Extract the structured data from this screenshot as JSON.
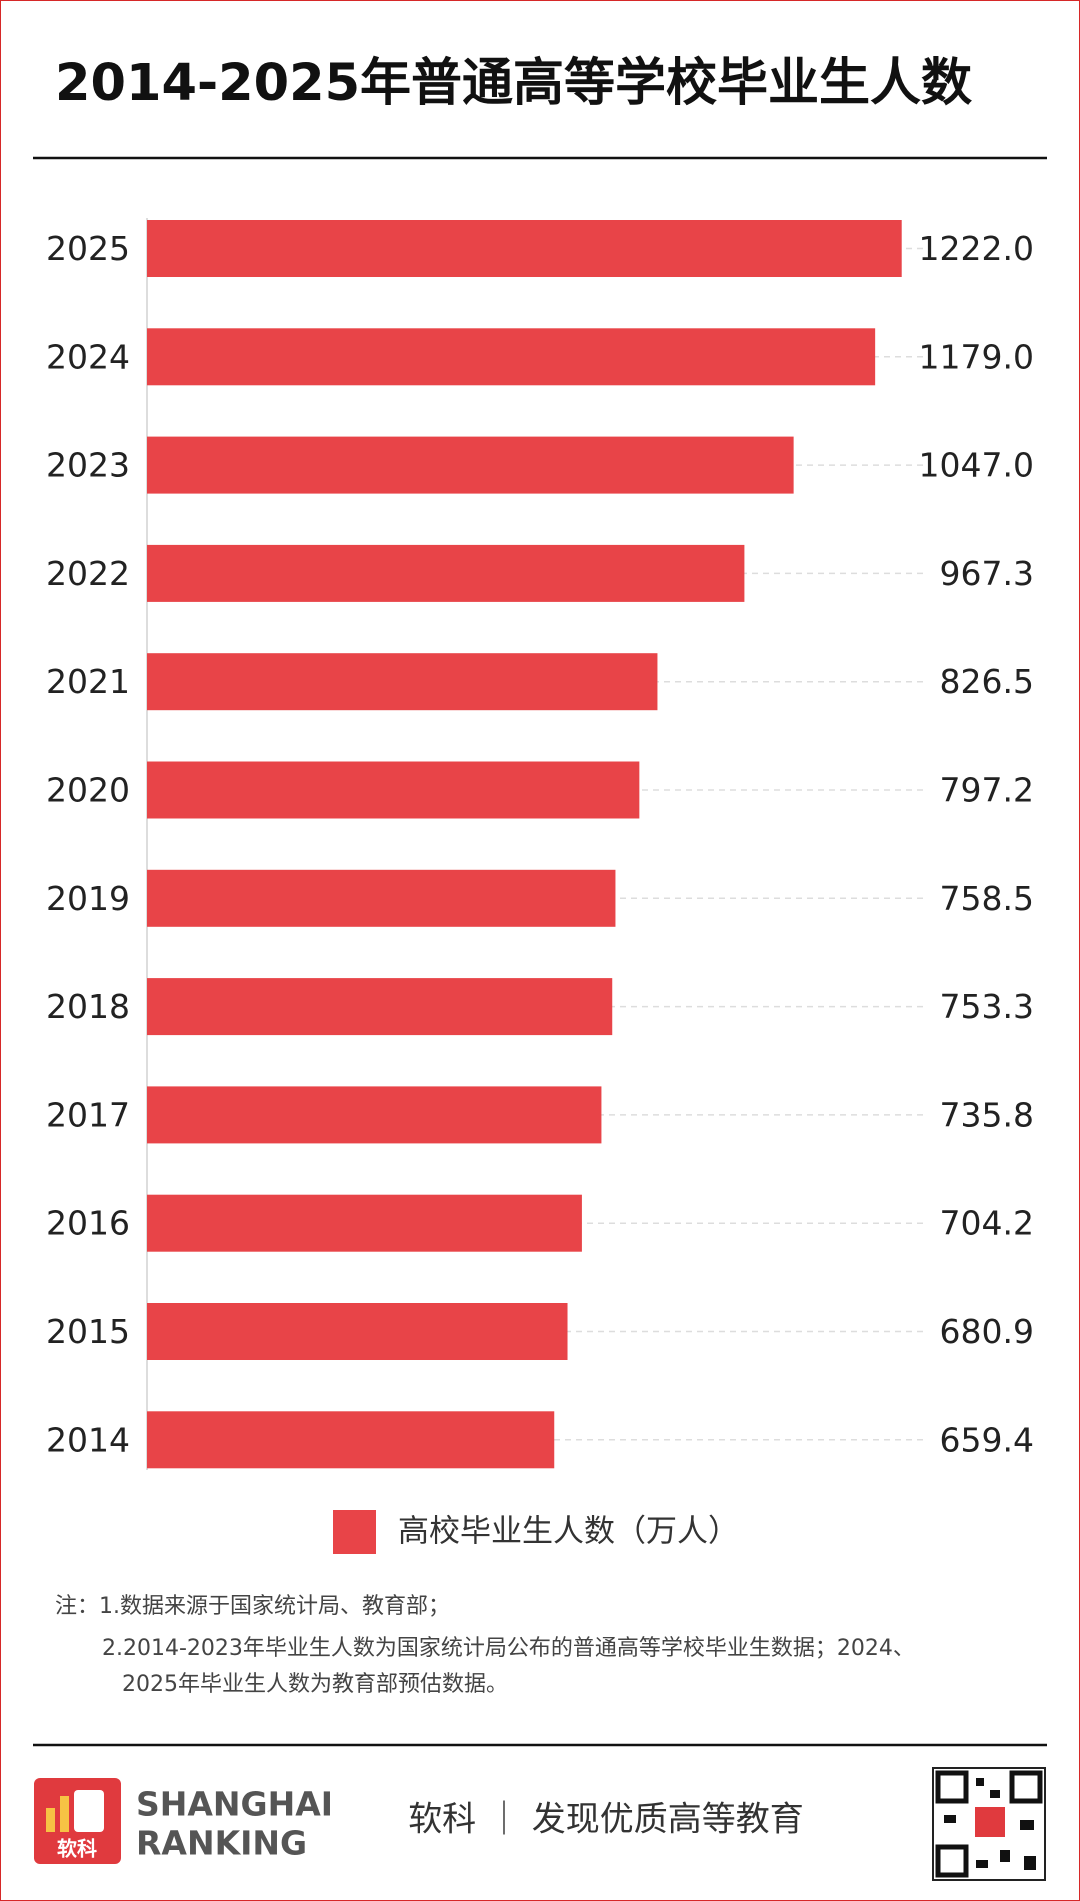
{
  "chart_data": {
    "type": "bar",
    "orientation": "horizontal",
    "title": "2014-2025年普通高等学校毕业生人数",
    "categories": [
      "2025",
      "2024",
      "2023",
      "2022",
      "2021",
      "2020",
      "2019",
      "2018",
      "2017",
      "2016",
      "2015",
      "2014"
    ],
    "series": [
      {
        "name": "高校毕业生人数（万人）",
        "color": "#e84448",
        "values": [
          1222.0,
          1179.0,
          1047.0,
          967.3,
          826.5,
          797.2,
          758.5,
          753.3,
          735.8,
          704.2,
          680.9,
          659.4
        ],
        "value_labels": [
          "1222.0",
          "1179.0",
          "1047.0",
          "967.3",
          "826.5",
          "797.2",
          "758.5",
          "753.3",
          "735.8",
          "704.2",
          "680.9",
          "659.4"
        ]
      }
    ],
    "xlim": [
      0,
      1250
    ],
    "legend": "bottom"
  },
  "notes": [
    "注：1.数据来源于国家统计局、教育部；",
    "2.2014-2023年毕业生人数为国家统计局公布的普通高等学校毕业生数据；2024、",
    "2025年毕业生人数为教育部预估数据。"
  ],
  "footer": {
    "logo_mark": "软科",
    "brand_line1": "SHANGHAI",
    "brand_line2": "RANKING",
    "slogan": "软科 ｜ 发现优质高等教育"
  }
}
